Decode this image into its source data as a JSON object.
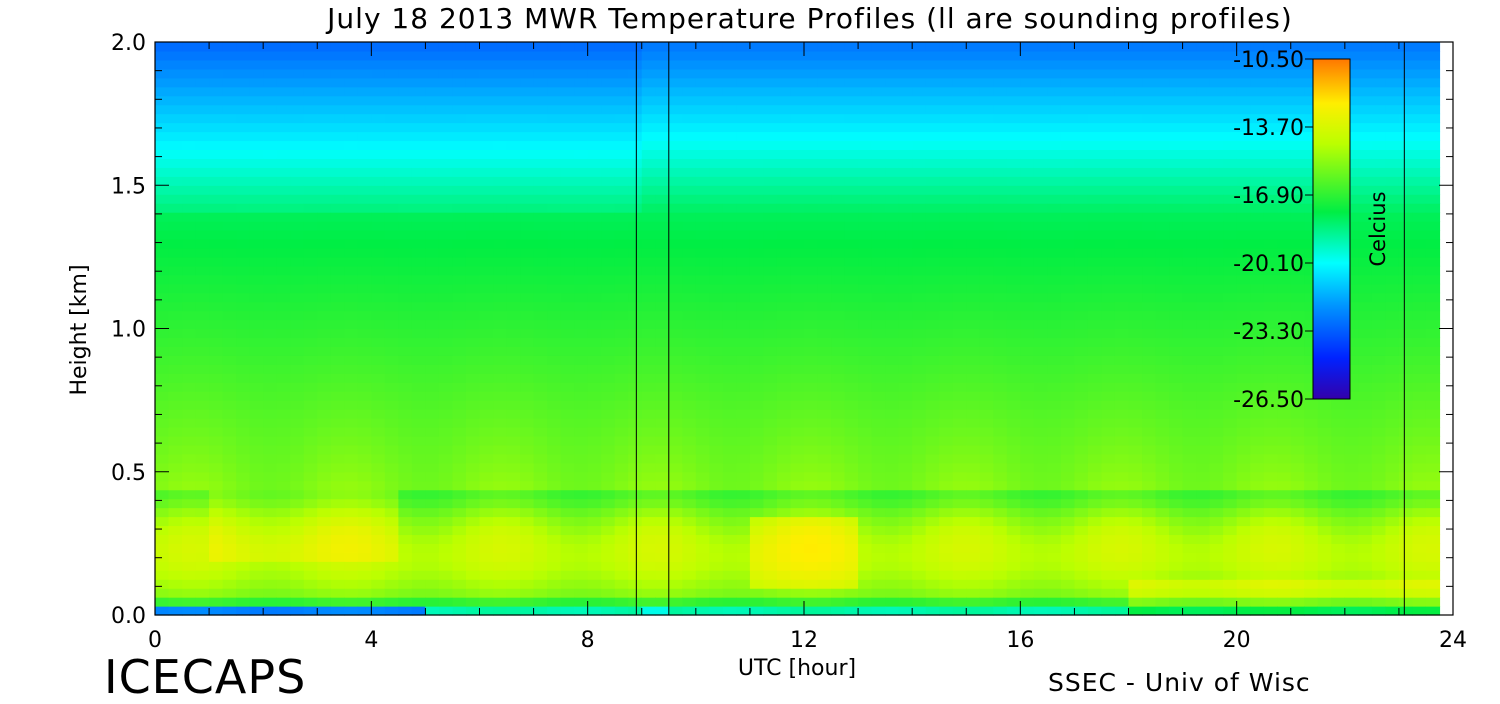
{
  "chart_data": {
    "type": "heatmap",
    "title": "July 18 2013 MWR Temperature Profiles (ll are sounding profiles)",
    "xlabel": "UTC [hour]",
    "ylabel": "Height [km]",
    "xlim": [
      0,
      24
    ],
    "ylim": [
      0,
      2.0
    ],
    "xticks": [
      "0",
      "4",
      "8",
      "12",
      "16",
      "20",
      "24"
    ],
    "yticks": [
      "0.0",
      "0.5",
      "1.0",
      "1.5",
      "2.0"
    ],
    "data_extent_hours": [
      0,
      23.75
    ],
    "sounding_times_hours": [
      8.9,
      9.5,
      23.1
    ],
    "colorbar": {
      "label": "Celcius",
      "range": [
        -26.5,
        -10.5
      ],
      "ticks": [
        "-10.50",
        "-13.70",
        "-16.90",
        "-20.10",
        "-23.30",
        "-26.50"
      ],
      "placement": "top-right inside plot"
    },
    "colormap_stops": [
      {
        "t": 0.0,
        "color": "#3300aa"
      },
      {
        "t": 0.12,
        "color": "#0022ff"
      },
      {
        "t": 0.28,
        "color": "#0099ff"
      },
      {
        "t": 0.4,
        "color": "#00ffff"
      },
      {
        "t": 0.55,
        "color": "#00ee44"
      },
      {
        "t": 0.75,
        "color": "#bbff00"
      },
      {
        "t": 0.87,
        "color": "#ffee00"
      },
      {
        "t": 1.0,
        "color": "#ff7700"
      }
    ],
    "grid": false
  },
  "labels": {
    "brand_left": "ICECAPS",
    "brand_right": "SSEC - Univ of Wisc"
  }
}
